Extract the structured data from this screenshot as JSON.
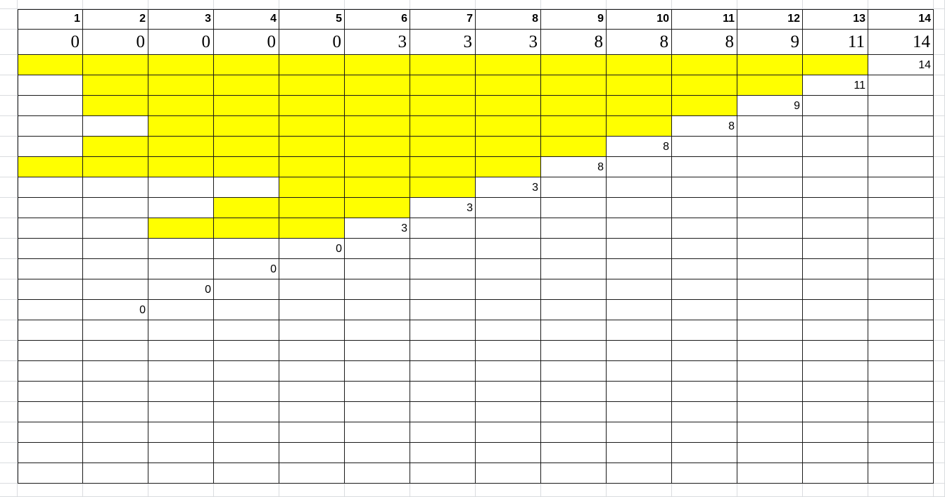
{
  "sheet": {
    "header_numbers": [
      "1",
      "2",
      "3",
      "4",
      "5",
      "6",
      "7",
      "8",
      "9",
      "10",
      "11",
      "12",
      "13",
      "14"
    ],
    "top_values": [
      "0",
      "0",
      "0",
      "0",
      "0",
      "3",
      "3",
      "3",
      "8",
      "8",
      "8",
      "9",
      "11",
      "14"
    ],
    "grid_rows": 21,
    "highlight_color": "#ffff00",
    "highlight_rows": [
      [
        1,
        2,
        3,
        4,
        5,
        6,
        7,
        8,
        9,
        10,
        11,
        12,
        13
      ],
      [
        2,
        3,
        4,
        5,
        6,
        7,
        8,
        9,
        10,
        11,
        12
      ],
      [
        2,
        3,
        4,
        5,
        6,
        7,
        8,
        9,
        10,
        11
      ],
      [
        3,
        4,
        5,
        6,
        7,
        8,
        9,
        10
      ],
      [
        2,
        3,
        4,
        5,
        6,
        7,
        8,
        9
      ],
      [
        1,
        2,
        3,
        4,
        5,
        6,
        7,
        8
      ],
      [
        5,
        6,
        7
      ],
      [
        4,
        5,
        6
      ],
      [
        3,
        4,
        5
      ]
    ],
    "diagonal_values": [
      {
        "row": 1,
        "col": 14,
        "value": "14"
      },
      {
        "row": 2,
        "col": 13,
        "value": "11"
      },
      {
        "row": 3,
        "col": 12,
        "value": "9"
      },
      {
        "row": 4,
        "col": 11,
        "value": "8"
      },
      {
        "row": 5,
        "col": 10,
        "value": "8"
      },
      {
        "row": 6,
        "col": 9,
        "value": "8"
      },
      {
        "row": 7,
        "col": 8,
        "value": "3"
      },
      {
        "row": 8,
        "col": 7,
        "value": "3"
      },
      {
        "row": 9,
        "col": 6,
        "value": "3"
      },
      {
        "row": 10,
        "col": 5,
        "value": "0"
      },
      {
        "row": 11,
        "col": 4,
        "value": "0"
      },
      {
        "row": 12,
        "col": 3,
        "value": "0"
      },
      {
        "row": 13,
        "col": 2,
        "value": "0"
      }
    ]
  }
}
